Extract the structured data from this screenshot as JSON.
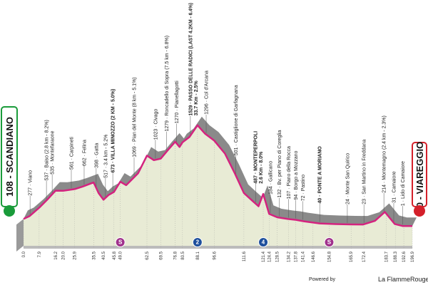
{
  "chart_data": {
    "type": "profile",
    "start": "108 - SCANDIANO",
    "finish": "0 - VIAREGGIO",
    "line_color": "#d4237f",
    "x": [
      0,
      3,
      7.9,
      12,
      16.2,
      20,
      25.9,
      30,
      35.5,
      38,
      40.5,
      43,
      45.8,
      49,
      52,
      58,
      62.5,
      66,
      69.5,
      73,
      76.8,
      79,
      80.5,
      84,
      88.1,
      92,
      96.6,
      102,
      107,
      111.6,
      116,
      119,
      121.4,
      124.4,
      128.5,
      134,
      138,
      142,
      150,
      158,
      166,
      172,
      178,
      183,
      188,
      192,
      196.9
    ],
    "values": [
      108,
      150,
      277,
      400,
      537,
      535,
      561,
      600,
      662,
      500,
      398,
      470,
      517,
      673,
      620,
      800,
      1069,
      1000,
      1023,
      1150,
      1279,
      1200,
      1270,
      1350,
      1529,
      1400,
      1296,
      1100,
      800,
      501,
      380,
      300,
      487,
      184,
      132,
      107,
      94,
      72,
      40,
      30,
      24,
      23,
      80,
      214,
      31,
      1,
      0
    ],
    "xlim": [
      0,
      196.9
    ],
    "ylim": [
      -300,
      1700
    ],
    "xticks": [
      {
        "value": 0,
        "label": "0.0"
      },
      7.9,
      16.2,
      {
        "value": 20,
        "label": "20.0"
      },
      25.9,
      35.5,
      40.5,
      45.8,
      {
        "value": 49,
        "label": "49.0"
      },
      62.5,
      69.5,
      76.8,
      80.5,
      88.1,
      96.6,
      111.6,
      121.4,
      124.4,
      128.5,
      134.2,
      137.8,
      141.4,
      146.6,
      154.8,
      165.9,
      172.4,
      183.7,
      188.3,
      192.6,
      196.9
    ],
    "waypoints": [
      {
        "km": 3.3,
        "label": "277 · Viano"
      },
      {
        "km": 11.6,
        "label": "537 · Baiso (2.8 km - 8.2%)"
      },
      {
        "km": 14.5,
        "label": "535 · Montefaraone"
      },
      {
        "km": 24.2,
        "label": "561 · Carpineti"
      },
      {
        "km": 30.7,
        "label": "662 · Felina"
      },
      {
        "km": 36.8,
        "label": "398 · Gatta"
      },
      {
        "km": 41.5,
        "label": "517 · 3.4 km - 5.2%"
      },
      {
        "km": 45.2,
        "label": "673 · VILLA MINOZZO (2 KM - 5.0%)",
        "bold": true
      },
      {
        "km": 56,
        "label": "1069 · Pian del Monte (8 km - 5.1%)"
      },
      {
        "km": 66.8,
        "label": "1023 · Civago"
      },
      {
        "km": 72.5,
        "label": "1279 · Roncadello di Sopra (7.5 km - 6.8%)"
      },
      {
        "km": 77.5,
        "label": "1270 · Pianellagotti"
      },
      {
        "km": 84.5,
        "label": "1529 · PASSO DELLE RADICI (LAST 4.2KM - 6.4%)",
        "sublabel": "33.7 Km - 2.5%",
        "bold": true
      },
      {
        "km": 92.5,
        "label": "1296 · Col d'Arcana"
      },
      {
        "km": 107.5,
        "label": "501 · Castiglione di Garfagnana"
      },
      {
        "km": 117.5,
        "label": "487 · MONTEPERPOLI",
        "sublabel": "2.6 Km - 8.0%",
        "bold": true
      },
      {
        "km": 125,
        "label": "184 · Gallicano"
      },
      {
        "km": 129.5,
        "label": "132 · Bv. per Piano di Coreglia"
      },
      {
        "km": 134.2,
        "label": "107 · Piano della Rocca"
      },
      {
        "km": 137.8,
        "label": "94 · Borgo a Mozzano"
      },
      {
        "km": 141.4,
        "label": "72 · Pastino"
      },
      {
        "km": 150,
        "label": "40 · PONTE A MORIANO",
        "bold": true
      },
      {
        "km": 164,
        "label": "24 · Monte San Quirico"
      },
      {
        "km": 172.4,
        "label": "23 · San Martino in Freddana"
      },
      {
        "km": 182.5,
        "label": "214 · Montemagno (2.4 km - 2.3%)"
      },
      {
        "km": 187.5,
        "label": "31 · Camaiore"
      },
      {
        "km": 192,
        "label": "1 · Lido di Camaiore"
      }
    ],
    "markers": [
      {
        "km": 49,
        "label": "S",
        "color": "#a0328c"
      },
      {
        "km": 88.1,
        "label": "2",
        "color": "#1e4f9c"
      },
      {
        "km": 121.4,
        "label": "4",
        "color": "#1e4f9c"
      },
      {
        "km": 154.8,
        "label": "S",
        "color": "#a0328c"
      }
    ]
  },
  "footer": {
    "powered": "Powered by",
    "brand": "La FlammeRouge"
  }
}
